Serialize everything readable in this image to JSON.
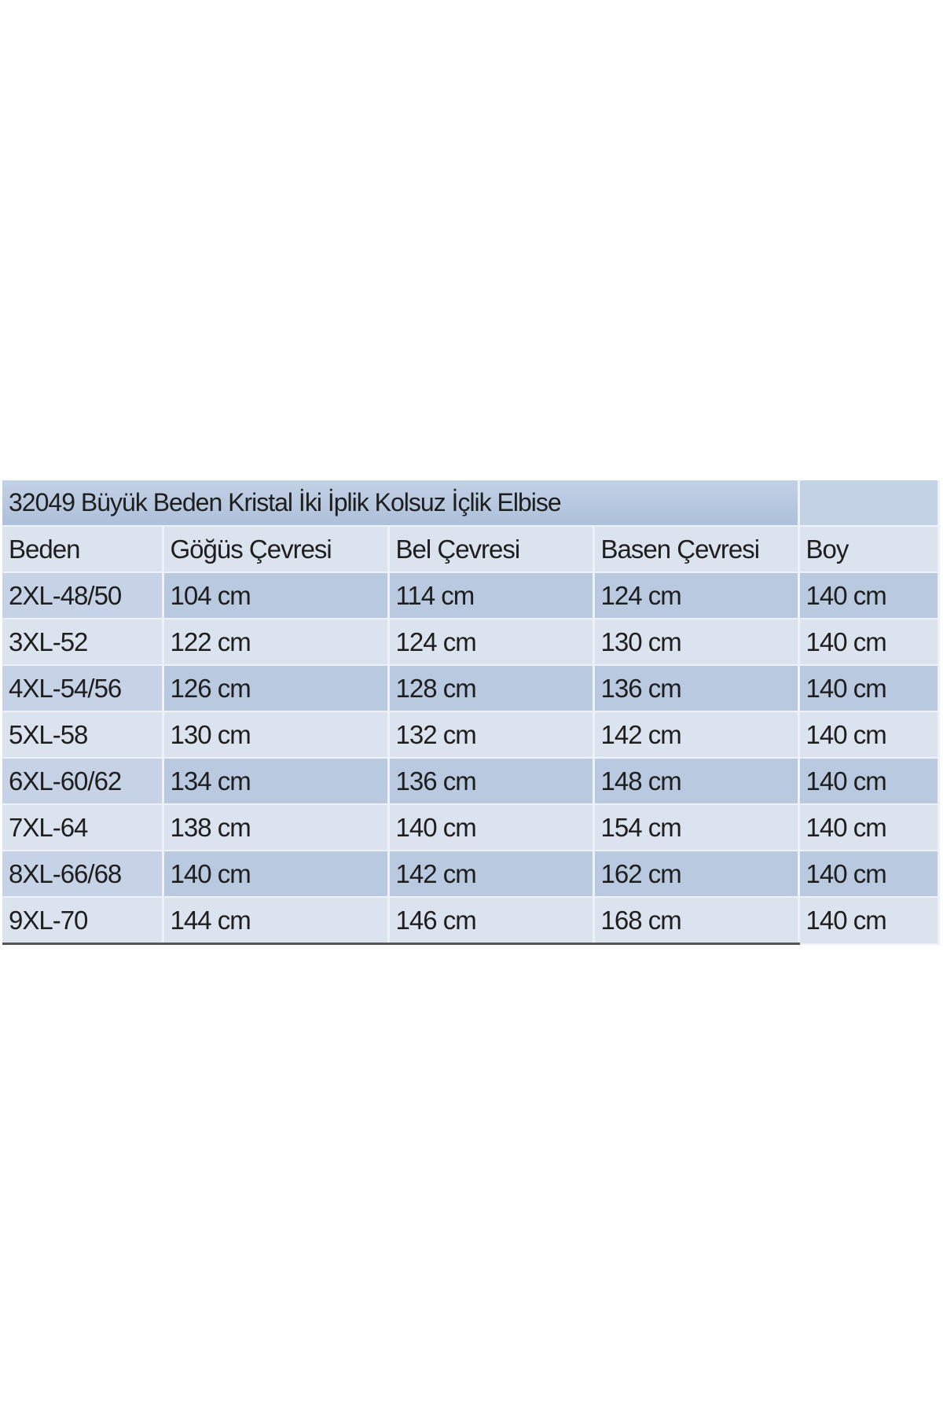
{
  "title": "32049 Büyük Beden Kristal İki İplik Kolsuz İçlik Elbise",
  "columns": [
    "Beden",
    "Göğüs Çevresi",
    "Bel Çevresi",
    "Basen Çevresi",
    "Boy"
  ],
  "rows": [
    [
      "2XL-48/50",
      "104 cm",
      "114 cm",
      "124 cm",
      "140 cm"
    ],
    [
      "3XL-52",
      "122 cm",
      "124 cm",
      "130 cm",
      "140 cm"
    ],
    [
      "4XL-54/56",
      "126 cm",
      "128 cm",
      "136 cm",
      "140 cm"
    ],
    [
      "5XL-58",
      "130 cm",
      "132 cm",
      "142 cm",
      "140 cm"
    ],
    [
      "6XL-60/62",
      "134 cm",
      "136 cm",
      "148 cm",
      "140 cm"
    ],
    [
      "7XL-64",
      "138 cm",
      "140 cm",
      "154 cm",
      "140 cm"
    ],
    [
      "8XL-66/68",
      "140 cm",
      "142 cm",
      "162 cm",
      "140 cm"
    ],
    [
      "9XL-70",
      "144 cm",
      "146 cm",
      "168 cm",
      "140 cm"
    ]
  ],
  "colors": {
    "row_dark": "#b9c9df",
    "row_light": "#dbe3ef"
  }
}
